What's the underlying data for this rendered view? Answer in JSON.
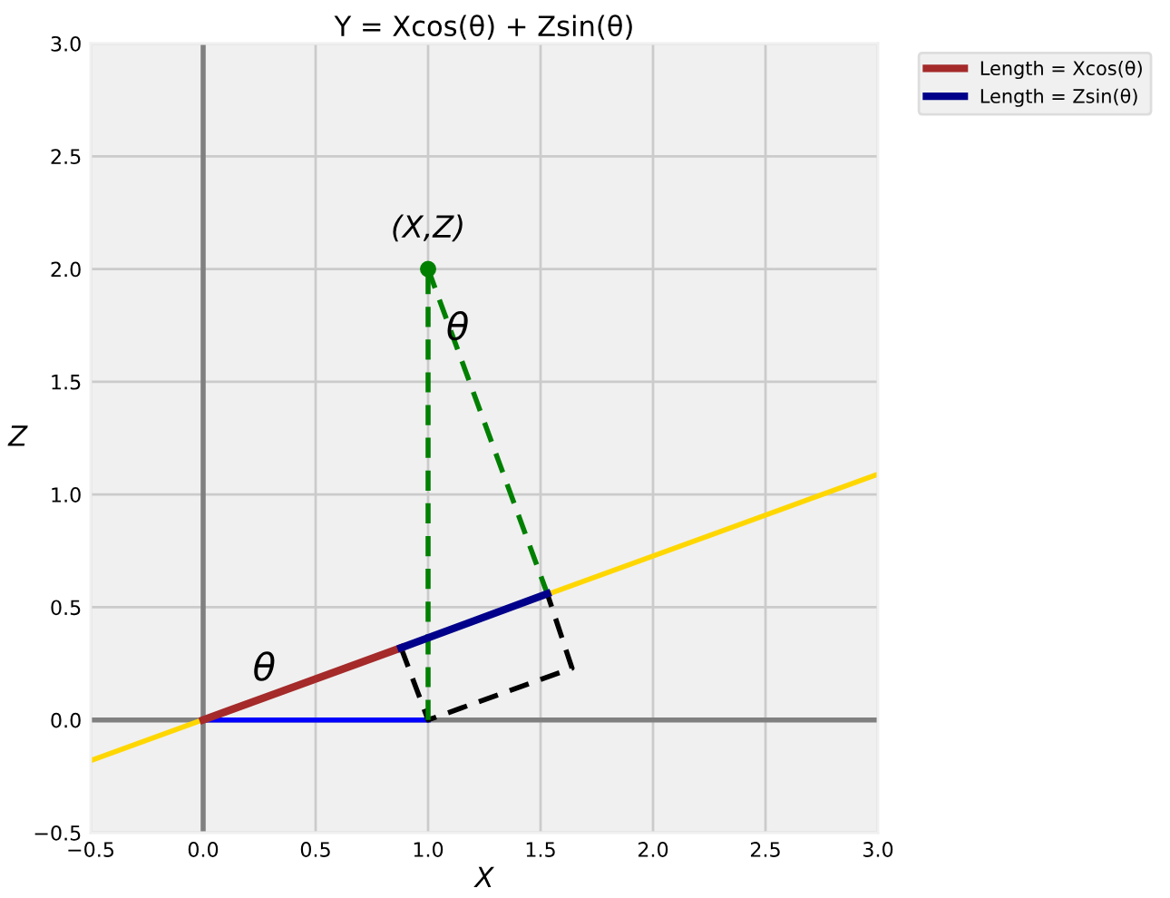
{
  "chart_data": {
    "type": "line",
    "title": "Y = Xcos(θ) + Zsin(θ)",
    "xlabel": "X",
    "ylabel": "Z",
    "xlim": [
      -0.5,
      3.0
    ],
    "ylim": [
      -0.5,
      3.0
    ],
    "xticks": [
      {
        "value": -0.5,
        "label": "−0.5"
      },
      {
        "value": 0,
        "label": "0.0"
      },
      0.5,
      {
        "value": 1,
        "label": "1.0"
      },
      1.5,
      {
        "value": 2,
        "label": "2.0"
      },
      2.5,
      {
        "value": 3,
        "label": "3.0"
      }
    ],
    "yticks": [
      {
        "value": -0.5,
        "label": "−0.5"
      },
      {
        "value": 0,
        "label": "0.0"
      },
      0.5,
      {
        "value": 1,
        "label": "1.0"
      },
      1.5,
      {
        "value": 2,
        "label": "2.0"
      },
      2.5,
      {
        "value": 3,
        "label": "3.0"
      }
    ],
    "grid": true,
    "legend": "top right",
    "series": [
      {
        "color": "#808080",
        "x": [
          0,
          0
        ],
        "values": [
          -0.5,
          3.0
        ]
      },
      {
        "color": "#808080",
        "x": [
          -0.5,
          3.0
        ],
        "values": [
          0,
          0
        ]
      },
      {
        "color": "#ffd700",
        "x": [
          -0.5,
          3.0
        ],
        "values": [
          -0.18,
          1.09
        ]
      },
      {
        "name": "Length = Xcos(θ)",
        "color": "#a52a2a",
        "x": [
          0,
          0.88
        ],
        "values": [
          0,
          0.32
        ]
      },
      {
        "name": "Length = Zsin(θ)",
        "color": "#00008b",
        "x": [
          0.88,
          1.53
        ],
        "values": [
          0.32,
          0.56
        ]
      },
      {
        "color": "#0000ff",
        "x": [
          0,
          1.0
        ],
        "values": [
          0,
          0
        ]
      },
      {
        "color": "#000000",
        "line_style": "dashed",
        "x": [
          0.88,
          1.0,
          1.64,
          1.53
        ],
        "values": [
          0.32,
          0,
          0.23,
          0.56
        ]
      },
      {
        "color": "#008000",
        "line_style": "dashed",
        "x": [
          1.0,
          1.0
        ],
        "values": [
          0,
          2.0
        ]
      },
      {
        "color": "#008000",
        "line_style": "dashed",
        "x": [
          1.0,
          1.53
        ],
        "values": [
          2.0,
          0.56
        ]
      },
      {
        "type": "scatter",
        "marker": "circle",
        "color": "#008000",
        "x": [
          1.0
        ],
        "values": [
          2.0
        ]
      }
    ],
    "annotations": [
      {
        "text": "(X,Z)",
        "x": 1.0,
        "y": 2.0
      },
      {
        "text": "θ",
        "x": 0.22,
        "y": 0.14
      },
      {
        "text": "θ",
        "x": 1.08,
        "y": 1.65
      }
    ]
  }
}
